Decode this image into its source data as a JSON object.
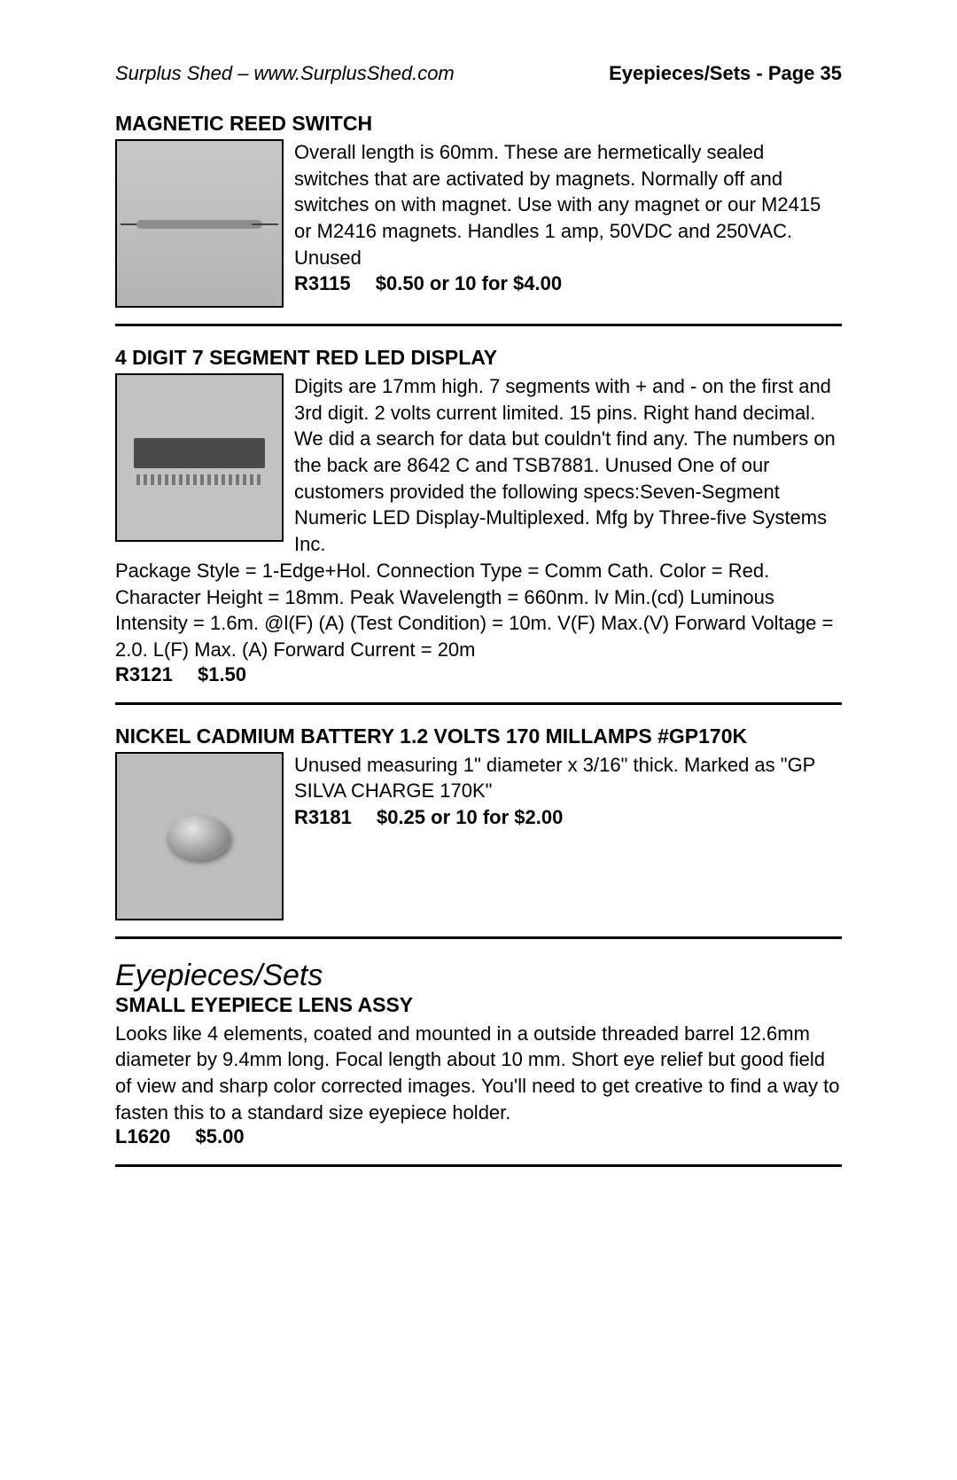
{
  "header": {
    "left": "Surplus Shed  –  www.SurplusShed.com",
    "right": "Eyepieces/Sets - Page 35"
  },
  "products": [
    {
      "title": "MAGNETIC REED SWITCH",
      "image_alt": "magnetic reed switch",
      "desc_side": "Overall length is 60mm.  These are hermetically sealed switches that are activated by magnets.  Normally off and switches on with magnet.  Use with any magnet or our M2415 or M2416 magnets.  Handles 1 amp, 50VDC and 250VAC.  Unused",
      "desc_cont": "",
      "sku": "R3115",
      "price": "$0.50 or 10 for $4.00",
      "img_class": "img-reed"
    },
    {
      "title": "4 DIGIT 7 SEGMENT RED LED DISPLAY",
      "image_alt": "4 digit 7 segment red LED display",
      "desc_side": "Digits are 17mm high.  7 segments with + and - on the first and 3rd digit.  2 volts current limited.  15 pins.  Right hand decimal.  We did a search for data but couldn't find any.  The numbers on the back are 8642 C and TSB7881.  Unused One of our customers provided the following specs:Seven-Segment Numeric LED Display-Multiplexed.  Mfg by Three-five Systems Inc.",
      "desc_cont": "Package Style = 1-Edge+Hol.  Connection Type = Comm Cath.  Color = Red.  Character Height = 18mm.  Peak Wavelength = 660nm.  lv Min.(cd) Luminous Intensity = 1.6m.  @l(F) (A) (Test Condition) = 10m.  V(F) Max.(V) Forward Voltage = 2.0.  L(F) Max. (A) Forward Current = 20m",
      "sku": "R3121",
      "price": "$1.50",
      "img_class": "img-led"
    },
    {
      "title": "NICKEL CADMIUM  BATTERY 1.2 VOLTS 170 MILLAMPS #GP170K",
      "image_alt": "nickel cadmium coin battery",
      "desc_side": "Unused measuring 1\" diameter x 3/16\" thick. Marked as \"GP SILVA CHARGE 170K\"",
      "desc_cont": "",
      "sku": "R3181",
      "price": "$0.25 or 10 for $2.00",
      "img_class": "img-batt"
    }
  ],
  "section": {
    "title": "Eyepieces/Sets"
  },
  "product4": {
    "title": "SMALL EYEPIECE LENS ASSY",
    "desc": "Looks like 4 elements, coated and mounted in a outside threaded barrel 12.6mm diameter by 9.4mm long. Focal length about 10 mm. Short eye relief but good field of view and sharp color corrected images. You'll need to get creative to find a way to fasten this to a standard size eyepiece holder.",
    "sku": "L1620",
    "price": "$5.00"
  }
}
